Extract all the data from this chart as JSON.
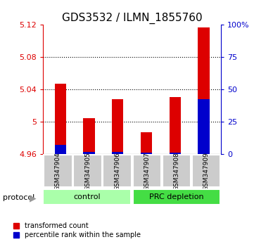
{
  "title": "GDS3532 / ILMN_1855760",
  "samples": [
    "GSM347904",
    "GSM347905",
    "GSM347906",
    "GSM347907",
    "GSM347908",
    "GSM347909"
  ],
  "red_values": [
    5.047,
    5.005,
    5.028,
    4.987,
    5.031,
    5.117
  ],
  "blue_values": [
    4.972,
    4.963,
    4.963,
    4.962,
    4.962,
    5.028
  ],
  "ylim_left": [
    4.96,
    5.12
  ],
  "ylim_right": [
    0,
    100
  ],
  "yticks_left": [
    4.96,
    5.0,
    5.04,
    5.08,
    5.12
  ],
  "yticks_right": [
    0,
    25,
    50,
    75,
    100
  ],
  "ytick_labels_left": [
    "4.96",
    "5",
    "5.04",
    "5.08",
    "5.12"
  ],
  "ytick_labels_right": [
    "0",
    "25",
    "50",
    "75",
    "100%"
  ],
  "bar_bottom": 4.96,
  "bar_width": 0.4,
  "red_color": "#dd0000",
  "blue_color": "#0000cc",
  "control_color": "#aaffaa",
  "prc_color": "#44dd44",
  "group_label_control": "control",
  "group_label_prc": "PRC depletion",
  "protocol_label": "protocol",
  "legend_red": "transformed count",
  "legend_blue": "percentile rank within the sample",
  "label_bg": "#cccccc",
  "title_fontsize": 11,
  "tick_fontsize": 8,
  "sample_fontsize": 6.5,
  "group_fontsize": 8,
  "legend_fontsize": 7,
  "grid_lines": [
    5.0,
    5.04,
    5.08
  ]
}
